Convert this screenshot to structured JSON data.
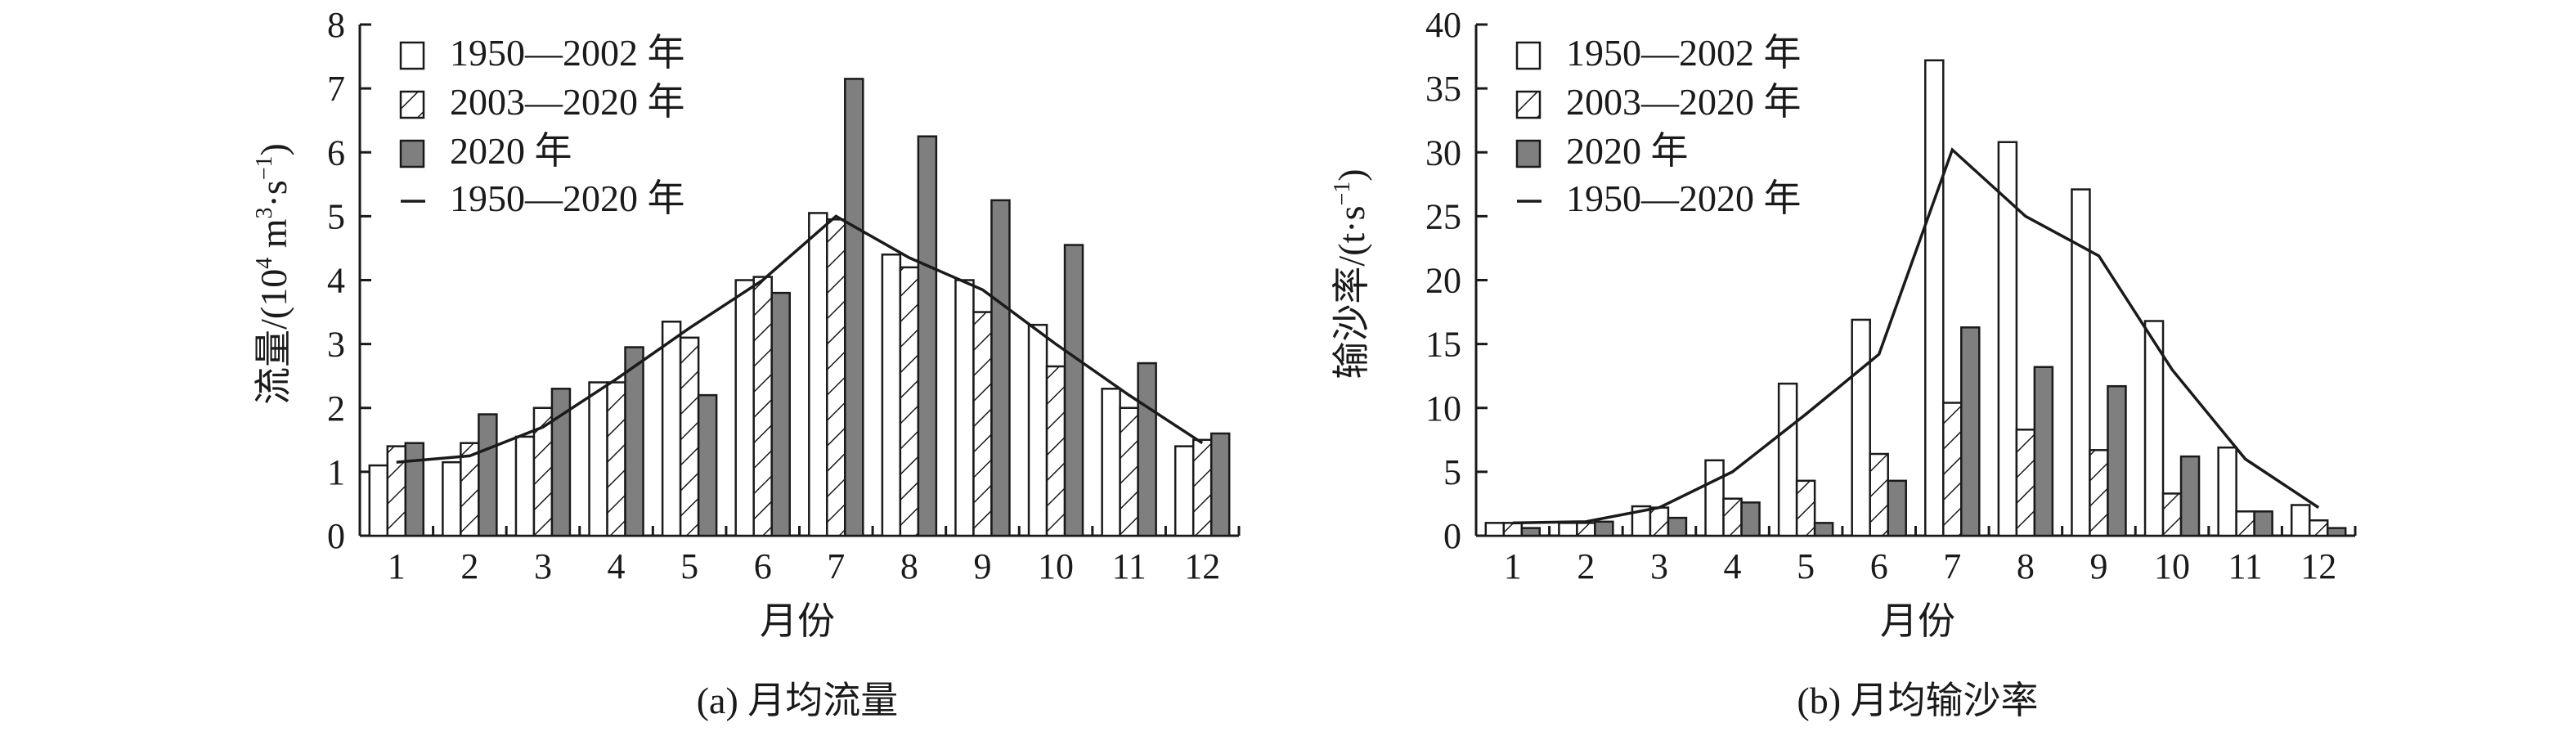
{
  "colors": {
    "ink": "#1a1a1a",
    "bar_white": "#ffffff",
    "bar_gray": "#7f7f7f",
    "background": "#ffffff"
  },
  "chart_data": [
    {
      "type": "bar",
      "caption": "(a) 月均流量",
      "xlabel": "月份",
      "ylabel_main": "流量/(10",
      "ylabel_sup1": "4",
      "ylabel_mid": " m",
      "ylabel_sup2": "3",
      "ylabel_mid2": "·s",
      "ylabel_sup3": "−1",
      "ylabel_end": ")",
      "categories": [
        "1",
        "2",
        "3",
        "4",
        "5",
        "6",
        "7",
        "8",
        "9",
        "10",
        "11",
        "12"
      ],
      "ylim": [
        0,
        8
      ],
      "yticks": [
        0,
        1,
        2,
        3,
        4,
        5,
        6,
        7,
        8
      ],
      "grid": false,
      "legend_position": "top-left",
      "series": [
        {
          "name": "1950—2002 年",
          "style": "white",
          "values": [
            1.1,
            1.15,
            1.55,
            2.4,
            3.35,
            4.0,
            5.05,
            4.4,
            4.0,
            3.3,
            2.3,
            1.4
          ]
        },
        {
          "name": "2003—2020 年",
          "style": "hatch",
          "values": [
            1.4,
            1.45,
            2.0,
            2.4,
            3.1,
            4.05,
            4.95,
            4.2,
            3.5,
            2.65,
            2.0,
            1.5
          ]
        },
        {
          "name": "2020 年",
          "style": "gray",
          "values": [
            1.45,
            1.9,
            2.3,
            2.95,
            2.2,
            3.8,
            7.15,
            6.25,
            5.25,
            4.55,
            2.7,
            1.6
          ]
        }
      ],
      "line": {
        "name": "1950—2020 年",
        "values": [
          1.15,
          1.25,
          1.7,
          2.45,
          3.25,
          4.0,
          5.0,
          4.35,
          3.85,
          3.0,
          2.2,
          1.45
        ]
      }
    },
    {
      "type": "bar",
      "caption": "(b) 月均输沙率",
      "xlabel": "月份",
      "ylabel_main": "输沙率/(t·s",
      "ylabel_sup1": "−1",
      "ylabel_end": ")",
      "categories": [
        "1",
        "2",
        "3",
        "4",
        "5",
        "6",
        "7",
        "8",
        "9",
        "10",
        "11",
        "12"
      ],
      "ylim": [
        0,
        40
      ],
      "yticks": [
        0,
        5,
        10,
        15,
        20,
        25,
        30,
        35,
        40
      ],
      "grid": false,
      "legend_position": "top-left",
      "series": [
        {
          "name": "1950—2002 年",
          "style": "white",
          "values": [
            1.0,
            1.0,
            2.3,
            5.9,
            11.9,
            16.9,
            37.2,
            30.8,
            27.1,
            16.8,
            6.9,
            2.4
          ]
        },
        {
          "name": "2003—2020 年",
          "style": "hatch",
          "values": [
            1.0,
            1.0,
            2.2,
            2.9,
            4.3,
            6.4,
            10.4,
            8.3,
            6.7,
            3.3,
            1.9,
            1.2
          ]
        },
        {
          "name": "2020 年",
          "style": "gray",
          "values": [
            0.6,
            1.1,
            1.4,
            2.6,
            1.0,
            4.3,
            16.3,
            13.2,
            11.7,
            6.2,
            1.9,
            0.6
          ]
        }
      ],
      "line": {
        "name": "1950—2020 年",
        "values": [
          1.0,
          1.1,
          2.2,
          5.0,
          9.5,
          14.2,
          30.2,
          25.0,
          21.9,
          13.0,
          6.0,
          2.2
        ]
      }
    }
  ]
}
